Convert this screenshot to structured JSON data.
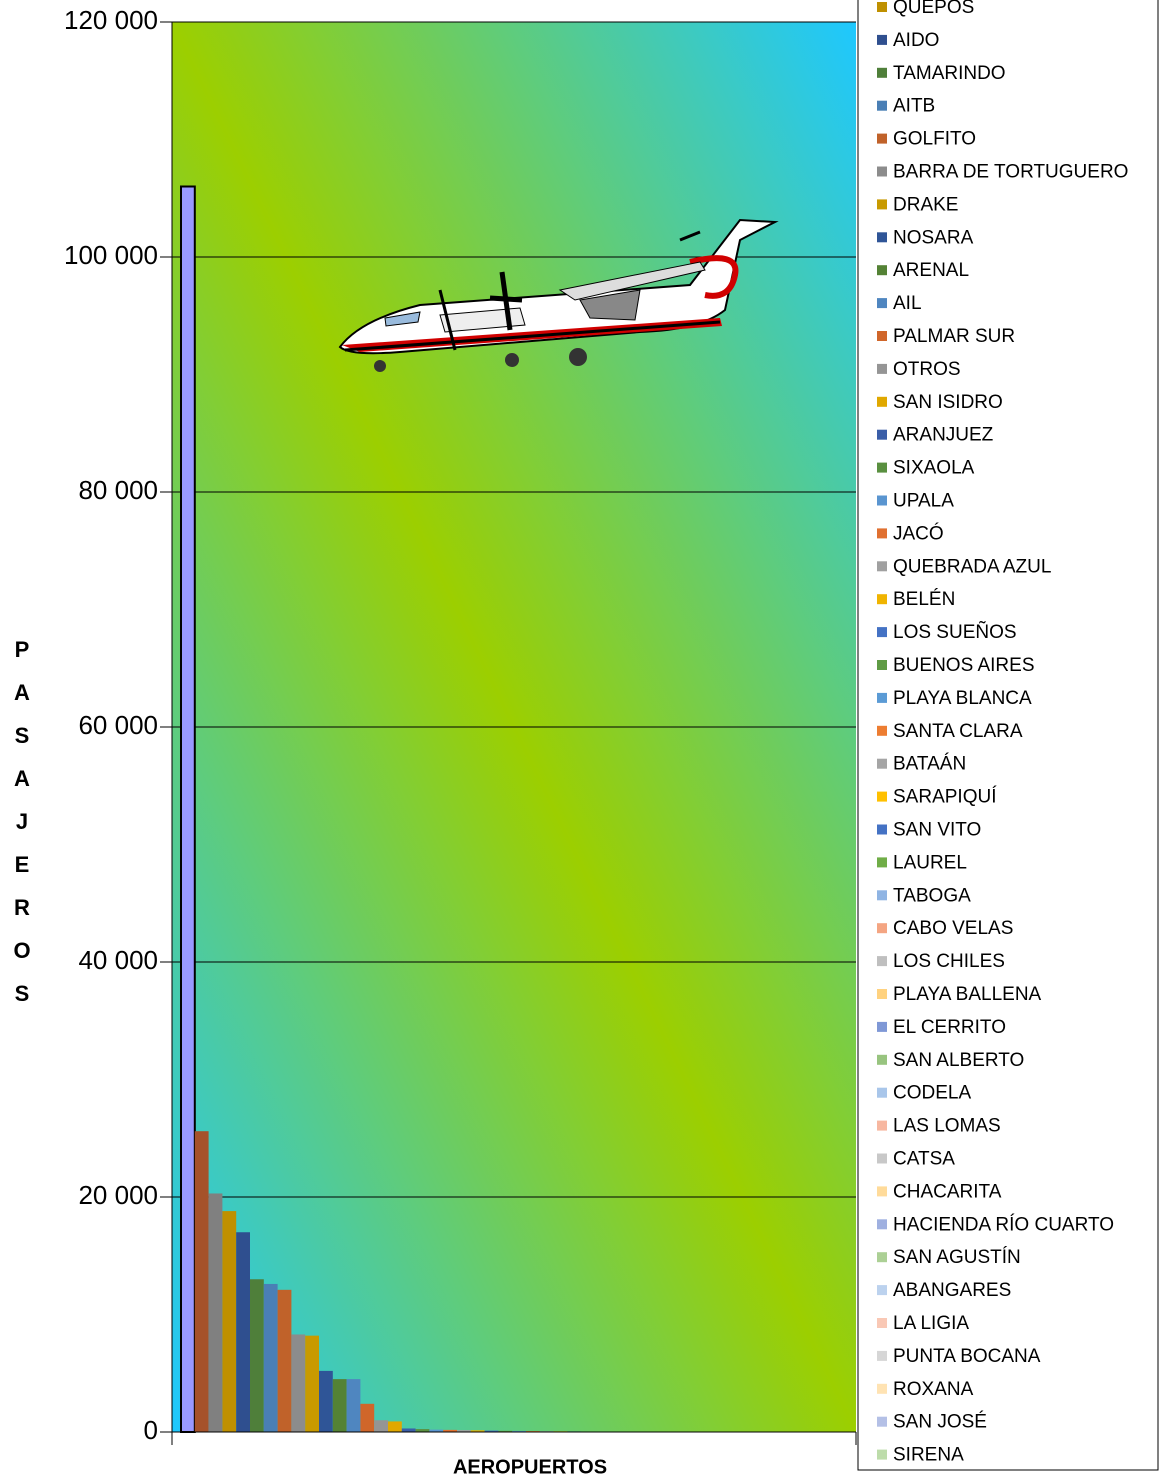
{
  "chart_data": {
    "type": "bar",
    "xlabel": "AEROPUERTOS",
    "ylabel": "PASAJEROS",
    "ylim": [
      0,
      120000
    ],
    "yticks": [
      0,
      {
        "value": 20000,
        "label": "20 000"
      },
      {
        "value": 40000,
        "label": "40 000"
      },
      {
        "value": 60000,
        "label": "60 000"
      },
      {
        "value": 80000,
        "label": "80 000"
      },
      {
        "value": 100000,
        "label": "100 000"
      },
      {
        "value": 120000,
        "label": "120 000"
      }
    ],
    "grid": true,
    "series": [
      {
        "color": "#9999ff",
        "edgecolor": "#000000",
        "values": [
          106000
        ]
      },
      {
        "color": "#a5522a",
        "values": [
          25600
        ]
      },
      {
        "color": "#808080",
        "values": [
          20300
        ]
      },
      {
        "name": "QUEPOS",
        "color": "#bf9000",
        "values": [
          18800
        ]
      },
      {
        "name": "AIDO",
        "color": "#2f4f8f",
        "values": [
          17000
        ]
      },
      {
        "name": "TAMARINDO",
        "color": "#4f7f3a",
        "values": [
          13000
        ]
      },
      {
        "name": "AITB",
        "color": "#4a7fb5",
        "values": [
          12600
        ]
      },
      {
        "name": "GOLFITO",
        "color": "#c0622a",
        "values": [
          12100
        ]
      },
      {
        "name": "BARRA DE TORTUGUERO",
        "color": "#8c8c8c",
        "values": [
          8300
        ]
      },
      {
        "name": "DRAKE",
        "color": "#c89a00",
        "values": [
          8200
        ]
      },
      {
        "name": "NOSARA",
        "color": "#2f5597",
        "values": [
          5200
        ]
      },
      {
        "name": "ARENAL",
        "color": "#548235",
        "values": [
          4500
        ]
      },
      {
        "name": "AIL",
        "color": "#4f86c0",
        "values": [
          4500
        ]
      },
      {
        "name": "PALMAR SUR",
        "color": "#d0662a",
        "values": [
          2400
        ]
      },
      {
        "name": "OTROS",
        "color": "#959595",
        "values": [
          1000
        ]
      },
      {
        "name": "SAN ISIDRO",
        "color": "#e0a800",
        "values": [
          900
        ]
      },
      {
        "name": "ARANJUEZ",
        "color": "#3a5ea8",
        "values": [
          300
        ]
      },
      {
        "name": "SIXAOLA",
        "color": "#5a9040",
        "values": [
          250
        ]
      },
      {
        "name": "UPALA",
        "color": "#5a95d0",
        "values": [
          200
        ]
      },
      {
        "name": "JACÓ",
        "color": "#e07030",
        "values": [
          180
        ]
      },
      {
        "name": "QUEBRADA AZUL",
        "color": "#a0a0a0",
        "values": [
          160
        ]
      },
      {
        "name": "BELÉN",
        "color": "#f0b400",
        "values": [
          140
        ]
      },
      {
        "name": "LOS SUEÑOS",
        "color": "#4472c4",
        "values": [
          120
        ]
      },
      {
        "name": "BUENOS AIRES",
        "color": "#5f9b45",
        "values": [
          100
        ]
      },
      {
        "name": "PLAYA BLANCA",
        "color": "#5b9bd5",
        "values": [
          90
        ]
      },
      {
        "name": "SANTA CLARA",
        "color": "#ed7d31",
        "values": [
          80
        ]
      },
      {
        "name": "BATAÁN",
        "color": "#a5a5a5",
        "values": [
          70
        ]
      },
      {
        "name": "SARAPIQUÍ",
        "color": "#ffc000",
        "values": [
          60
        ]
      },
      {
        "name": "SAN VITO",
        "color": "#4472c4",
        "values": [
          50
        ]
      },
      {
        "name": "LAUREL",
        "color": "#70ad47",
        "values": [
          45
        ]
      },
      {
        "name": "TABOGA",
        "color": "#8fb4e3",
        "values": [
          40
        ]
      },
      {
        "name": "CABO VELAS",
        "color": "#f4a582",
        "values": [
          35
        ]
      },
      {
        "name": "LOS CHILES",
        "color": "#bfbfbf",
        "values": [
          30
        ]
      },
      {
        "name": "PLAYA BALLENA",
        "color": "#ffd27f",
        "values": [
          28
        ]
      },
      {
        "name": "EL CERRITO",
        "color": "#7f98d6",
        "values": [
          26
        ]
      },
      {
        "name": "SAN ALBERTO",
        "color": "#98c47f",
        "values": [
          24
        ]
      },
      {
        "name": "CODELA",
        "color": "#a9c6ea",
        "values": [
          22
        ]
      },
      {
        "name": "LAS LOMAS",
        "color": "#f7b7a0",
        "values": [
          20
        ]
      },
      {
        "name": "CATSA",
        "color": "#c8c8c8",
        "values": [
          18
        ]
      },
      {
        "name": "CHACARITA",
        "color": "#ffdb9a",
        "values": [
          16
        ]
      },
      {
        "name": "HACIENDA RÍO CUARTO",
        "color": "#9fb0e0",
        "values": [
          14
        ]
      },
      {
        "name": "SAN AGUSTÍN",
        "color": "#acd095",
        "values": [
          12
        ]
      },
      {
        "name": "ABANGARES",
        "color": "#bcd2ee",
        "values": [
          10
        ]
      },
      {
        "name": "LA LIGIA",
        "color": "#f9c8b5",
        "values": [
          8
        ]
      },
      {
        "name": "PUNTA BOCANA",
        "color": "#d6d6d6",
        "values": [
          6
        ]
      },
      {
        "name": "ROXANA",
        "color": "#ffe3b3",
        "values": [
          4
        ]
      },
      {
        "name": "SAN JOSÉ",
        "color": "#b4c0e6",
        "values": [
          3
        ]
      },
      {
        "name": "SIRENA",
        "color": "#bddcaa",
        "values": [
          2
        ]
      }
    ]
  }
}
